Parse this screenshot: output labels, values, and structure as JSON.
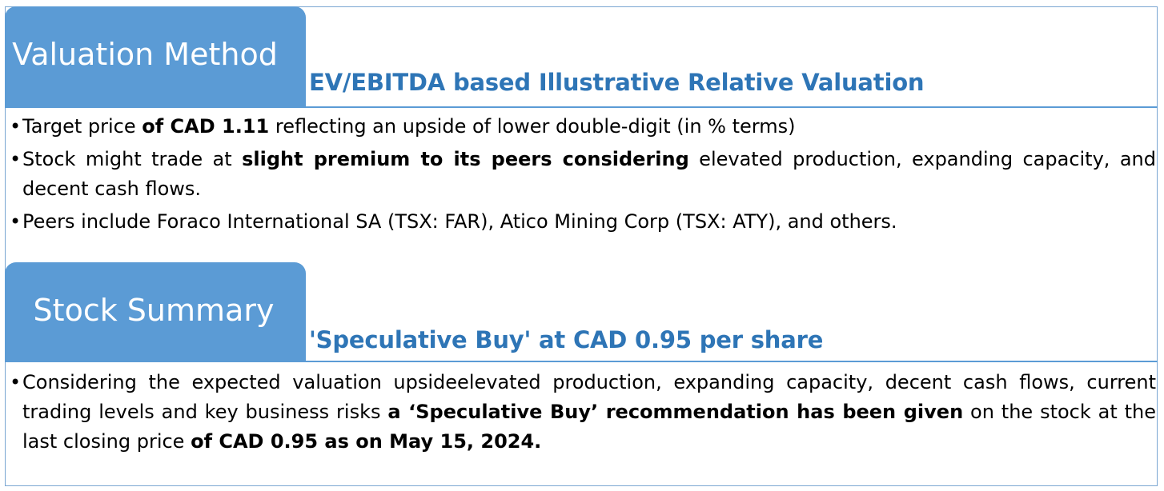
{
  "valuation": {
    "tab_label": "Valuation Method",
    "subheading": "EV/EBITDA based Illustrative Relative Valuation",
    "bullets": [
      {
        "dot": "•",
        "p1": "Target price ",
        "b1": "of CAD 1.11",
        "p2": " reflecting an upside of lower double-digit (in % terms)"
      },
      {
        "dot": "•",
        "p1": "Stock might trade at ",
        "b1": "slight premium to its peers considering",
        "p2": " elevated production, expanding capacity, and decent cash flows."
      },
      {
        "dot": "•",
        "p1": "Peers include Foraco International SA (TSX: FAR), Atico Mining Corp (TSX: ATY), and others."
      }
    ]
  },
  "summary": {
    "tab_label": "Stock Summary",
    "subheading": "'Speculative Buy' at CAD 0.95 per share",
    "bullets": [
      {
        "dot": "•",
        "p1": "Considering the expected valuation upsideelevated production, expanding capacity, decent cash flows, current trading levels and key business risks ",
        "b1": "a ‘Speculative Buy’ recommendation has been given",
        "p2": " on the stock at the last closing price ",
        "b2": "of CAD 0.95 as on May 15, 2024."
      }
    ]
  }
}
